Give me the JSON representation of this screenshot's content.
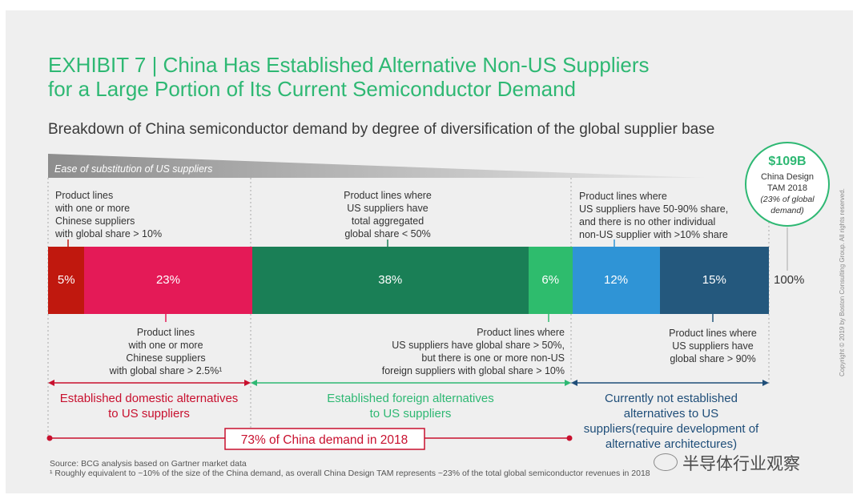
{
  "title": {
    "line1": "EXHIBIT 7 | China Has Established Alternative Non-US Suppliers",
    "line2": "for a Large Portion of Its Current Semiconductor Demand"
  },
  "subtitle": "Breakdown of China semiconductor demand by degree of diversification of the global supplier base",
  "ease_label": "Ease of substitution of US suppliers",
  "tam": {
    "value": "$109B",
    "line1": "China Design",
    "line2": "TAM 2018",
    "line3": "(23% of global",
    "line4": "demand)"
  },
  "chart_data": {
    "type": "bar",
    "orientation": "horizontal-stacked",
    "categories": [
      "5%",
      "23%",
      "38%",
      "6%",
      "12%",
      "15%"
    ],
    "values": [
      5,
      23,
      38,
      6,
      12,
      15
    ],
    "total_label": "100%",
    "colors": [
      "#c0180e",
      "#e41a57",
      "#1a7f56",
      "#2ebc6d",
      "#2f94d6",
      "#24587d"
    ]
  },
  "top_annotations": {
    "a1": [
      "Product lines",
      "with one or more",
      "Chinese suppliers",
      "with global share > 10%"
    ],
    "a2": [
      "Product lines where",
      "US suppliers have",
      "total aggregated",
      "global share < 50%"
    ],
    "a3": [
      "Product lines where",
      "US suppliers have 50-90% share,",
      "and there is no other individual",
      "non-US supplier with >10% share"
    ]
  },
  "bottom_annotations": {
    "b1": [
      "Product lines",
      "with one or more",
      "Chinese suppliers",
      "with global share > 2.5%¹"
    ],
    "b2": [
      "Product lines where",
      "US suppliers have global share > 50%,",
      "but there is one or more non-US",
      "foreign suppliers with global share > 10%"
    ],
    "b3": [
      "Product lines where",
      "US suppliers have",
      "global share > 90%"
    ]
  },
  "categories_text": {
    "domestic": [
      "Established domestic alternatives",
      "to US suppliers"
    ],
    "foreign": [
      "Established foreign alternatives",
      "to US suppliers"
    ],
    "not_established": [
      "Currently not established",
      "alternatives to US",
      "suppliers(require development of",
      "alternative architectures)"
    ]
  },
  "china_demand": "73% of China demand in 2018",
  "colors": {
    "domestic": "#c8102e",
    "foreign": "#2eb873",
    "not_established": "#1f4e79",
    "title": "#2eb873"
  },
  "footer": {
    "source": "Source: BCG analysis based on Gartner market data",
    "note": "¹ Roughly equivalent to ~10% of the size of the China demand, as overall China Design TAM represents ~23% of the total global semiconductor revenues in 2018"
  },
  "copyright": "Copyright © 2019 by Boston Consulting Group. All rights reserved.",
  "watermark": "半导体行业观察"
}
